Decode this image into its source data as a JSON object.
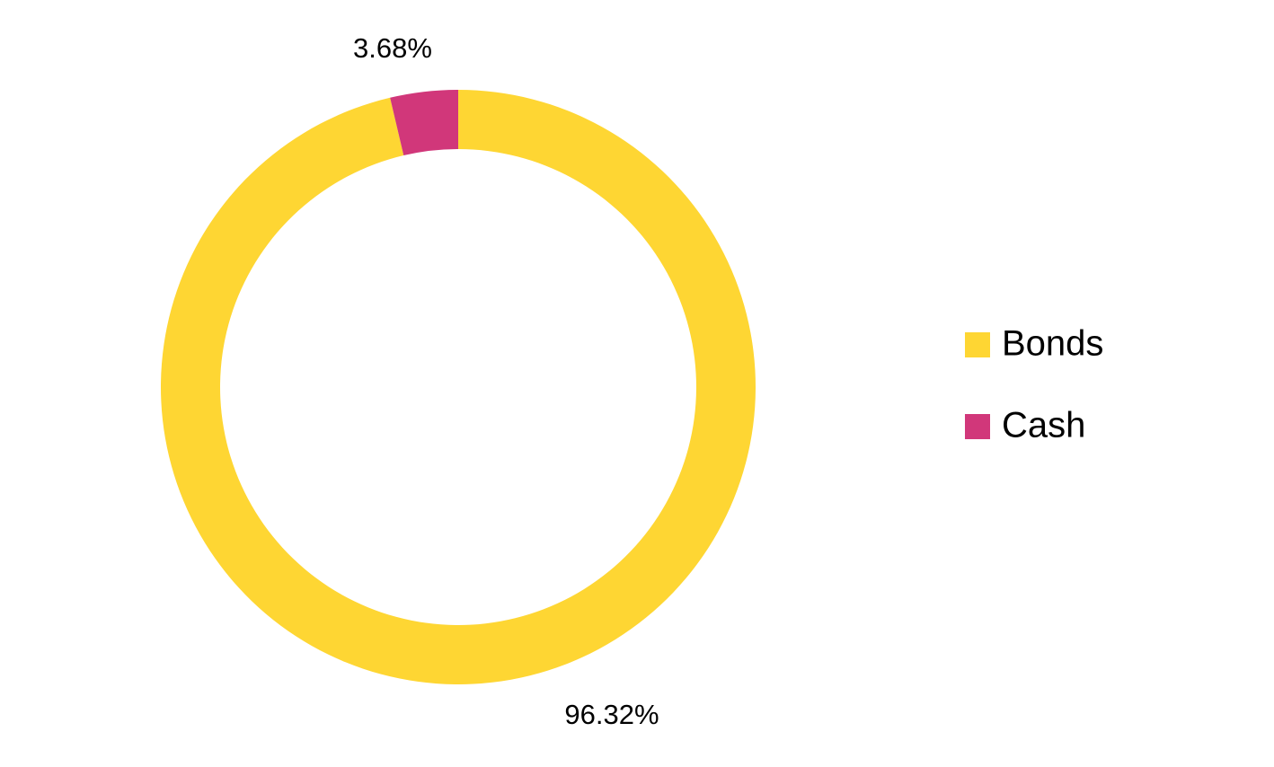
{
  "chart_data": {
    "type": "donut",
    "categories": [
      "Bonds",
      "Cash"
    ],
    "values": [
      96.32,
      3.68
    ],
    "value_labels": [
      "96.32%",
      "3.68%"
    ],
    "colors": [
      "#fed633",
      "#d1377a"
    ],
    "legend": "right"
  }
}
